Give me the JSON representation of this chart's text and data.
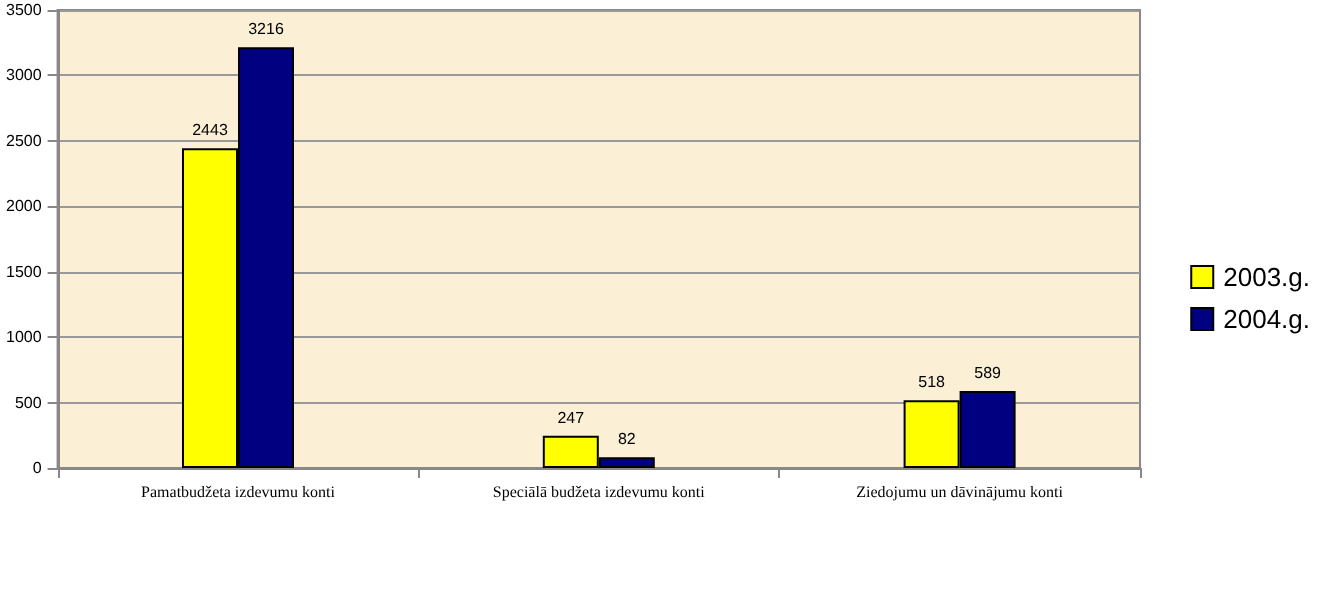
{
  "chart_data": {
    "type": "bar",
    "categories": [
      "Pamatbudžeta izdevumu konti",
      "Speciālā budžeta izdevumu konti",
      "Ziedojumu un dāvinājumu konti"
    ],
    "series": [
      {
        "name": "2003.g.",
        "color": "#ffff00",
        "values": [
          2443,
          247,
          518
        ]
      },
      {
        "name": "2004.g.",
        "color": "#000080",
        "values": [
          3216,
          82,
          589
        ]
      }
    ],
    "ylim": [
      0,
      3500
    ],
    "yticks": [
      0,
      500,
      1000,
      1500,
      2000,
      2500,
      3000,
      3500
    ],
    "grid": "y",
    "legend": "right",
    "data_labels": true
  }
}
